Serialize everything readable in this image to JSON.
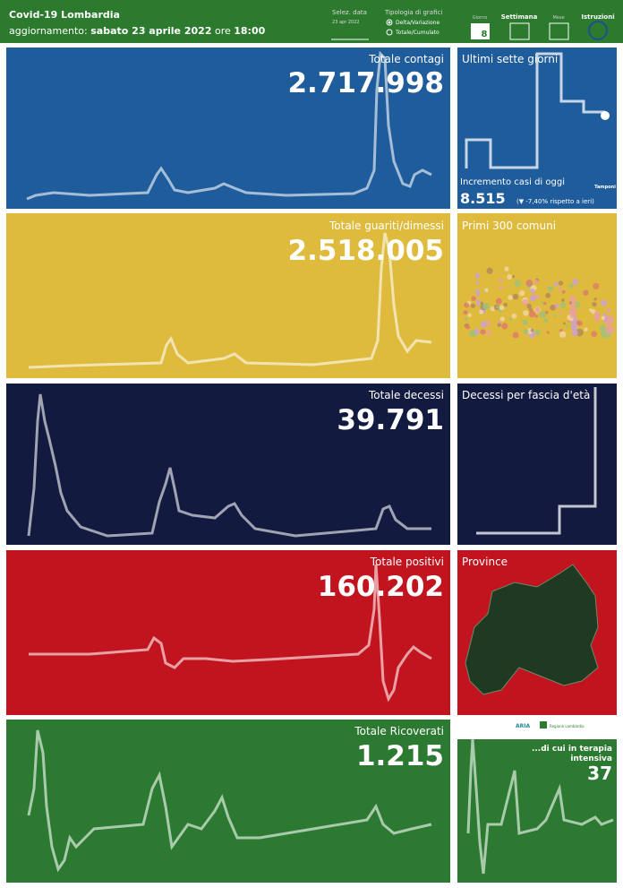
{
  "header": {
    "title": "Covid-19 Lombardia",
    "update_label": "aggiornamento:",
    "update_date": "sabato 23 aprile 2022",
    "time_label": "ore",
    "time": "18:00",
    "date_label": "Selez. data",
    "date": "23 apr 2022",
    "chart_type_label": "Tipologia di grafici",
    "chart_types": [
      "Delta/Variazione",
      "Totale/Cumulato"
    ],
    "views": [
      "Giorno",
      "Settimana",
      "Mese",
      "Istruzioni"
    ],
    "day_icon": "8"
  },
  "panels": [
    {
      "title": "Totale contagi",
      "value": "2.717.998"
    },
    {
      "title": "Totale guariti/dimessi",
      "value": "2.518.005"
    },
    {
      "title": "Totale decessi",
      "value": "39.791"
    },
    {
      "title": "Totale positivi",
      "value": "160.202"
    },
    {
      "title": "Totale Ricoverati",
      "value": "1.215"
    }
  ],
  "side": {
    "last_week": "Ultimi sette giorni",
    "increment_label": "Incremento casi di oggi",
    "increment": "8.515",
    "increment_note": "(▼ -7,40% rispetto a ieri)",
    "tests": "Tamponi",
    "municipalities": "Primi 300 comuni",
    "deaths_age": "Decessi per fascia d'età",
    "provinces": "Province",
    "aria": "ARIA",
    "region": "Regione Lombardia",
    "icu_label_1": "...di cui in terapia",
    "icu_label_2": "intensiva",
    "icu": "37"
  }
}
